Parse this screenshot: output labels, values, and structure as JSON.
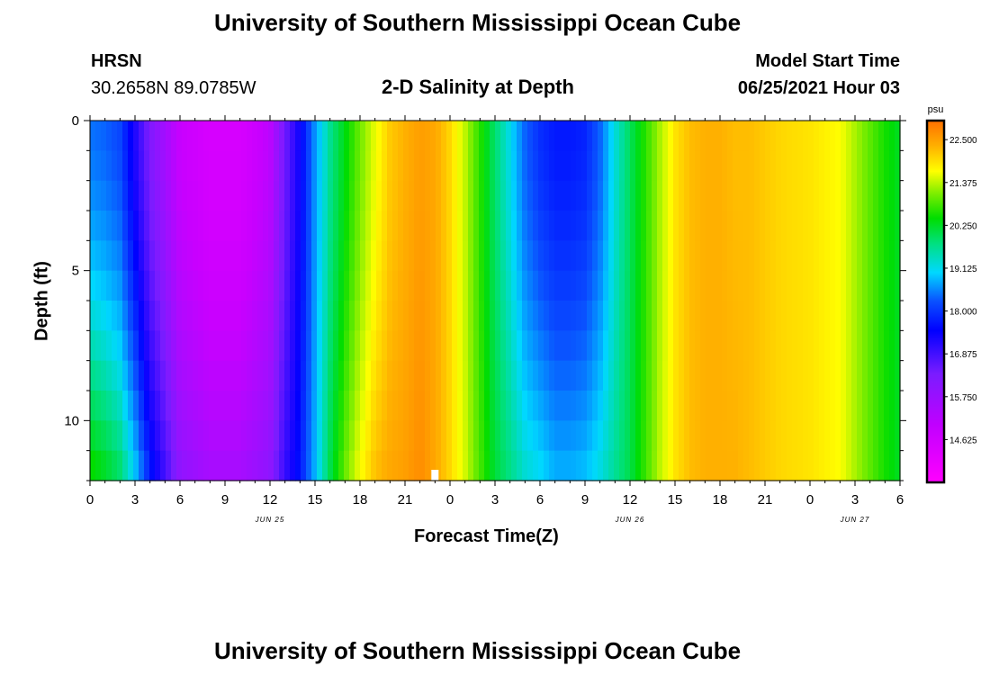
{
  "header": {
    "title": "University of Southern Mississippi Ocean Cube",
    "station_name": "HRSN",
    "station_coords": "30.2658N  89.0785W",
    "chart_subtitle": "2-D Salinity at Depth",
    "model_start_label": "Model Start Time",
    "model_start_value": "06/25/2021 Hour 03"
  },
  "footer": {
    "title": "University of Southern Mississippi Ocean Cube"
  },
  "chart_data": {
    "type": "heatmap",
    "title": "2-D Salinity at Depth",
    "xlabel": "Forecast Time(Z)",
    "ylabel": "Depth (ft)",
    "units_label": "psu",
    "xlim": [
      0,
      54
    ],
    "ylim": [
      0,
      12
    ],
    "y_inverted": true,
    "x_tick_labels": [
      "0",
      "3",
      "6",
      "9",
      "12",
      "15",
      "18",
      "21",
      "0",
      "3",
      "6",
      "9",
      "12",
      "15",
      "18",
      "21",
      "0",
      "3",
      "6"
    ],
    "y_tick_labels": [
      "0",
      "5",
      "10"
    ],
    "y_tick_values": [
      0,
      5,
      10
    ],
    "date_labels": [
      {
        "label": "JUN 25",
        "hour": 12
      },
      {
        "label": "JUN 26",
        "hour": 36
      },
      {
        "label": "JUN 27",
        "hour": 51
      }
    ],
    "colorbar": {
      "min": 13.5,
      "max": 23.0,
      "tick_labels": [
        "22.500",
        "21.375",
        "20.250",
        "19.125",
        "18.000",
        "16.875",
        "15.750",
        "14.625"
      ],
      "tick_values": [
        22.5,
        21.375,
        20.25,
        19.125,
        18.0,
        16.875,
        15.75,
        14.625
      ]
    },
    "time_hours": [
      0,
      1,
      2,
      3,
      4,
      6,
      8,
      10,
      12,
      13,
      14,
      15,
      16,
      17,
      18,
      19,
      20,
      21,
      22,
      23,
      24,
      25,
      26,
      27,
      28,
      29,
      30,
      31,
      32,
      33,
      34,
      35,
      36,
      37,
      38,
      39,
      40,
      41,
      42,
      43,
      44,
      45,
      46,
      48,
      50,
      51,
      52,
      53,
      54
    ],
    "surface_salinity": [
      18.4,
      18.3,
      18.1,
      17.2,
      16.2,
      15.0,
      14.6,
      14.6,
      15.2,
      16.4,
      17.4,
      18.6,
      19.6,
      20.3,
      21.0,
      21.6,
      22.1,
      22.3,
      22.5,
      22.4,
      22.0,
      21.4,
      20.6,
      19.8,
      19.1,
      18.3,
      17.9,
      17.7,
      17.7,
      17.8,
      18.3,
      19.2,
      19.9,
      20.6,
      21.3,
      21.9,
      22.2,
      22.3,
      22.3,
      22.2,
      22.2,
      22.1,
      22.0,
      21.9,
      21.7,
      21.3,
      20.9,
      20.5,
      20.2
    ],
    "bottom_salinity": [
      20.6,
      20.3,
      19.9,
      19.0,
      17.8,
      16.0,
      15.6,
      15.6,
      16.0,
      17.0,
      17.7,
      18.8,
      20.0,
      21.0,
      21.7,
      22.2,
      22.4,
      22.5,
      22.7,
      22.4,
      22.0,
      21.5,
      20.8,
      20.1,
      19.7,
      19.3,
      19.1,
      18.8,
      18.8,
      18.9,
      19.2,
      19.6,
      20.0,
      20.7,
      21.4,
      21.9,
      22.2,
      22.3,
      22.3,
      22.3,
      22.2,
      22.1,
      22.0,
      21.9,
      21.7,
      21.3,
      20.9,
      20.5,
      20.2
    ],
    "annotations": [
      {
        "type": "missing-data-cell",
        "hour": 23,
        "depth": 11.7
      }
    ]
  }
}
